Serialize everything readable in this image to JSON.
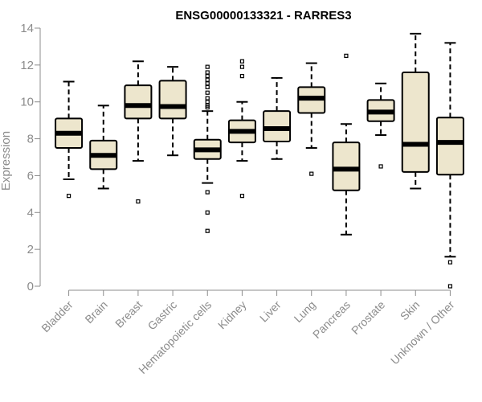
{
  "chart_data": {
    "type": "box",
    "title": "ENSG00000133321 - RARRES3",
    "ylabel": "Expression",
    "xlabel": "",
    "ylim": [
      0,
      14
    ],
    "yticks": [
      0,
      2,
      4,
      6,
      8,
      10,
      12,
      14
    ],
    "grid": false,
    "colors": {
      "box_fill": "#ede6cd",
      "box_stroke": "#000000",
      "axis": "#8c8c8c"
    },
    "categories": [
      "Bladder",
      "Brain",
      "Breast",
      "Gastric",
      "Hematopoietic cells",
      "Kidney",
      "Liver",
      "Lung",
      "Pancreas",
      "Prostate",
      "Skin",
      "Unknown / Other"
    ],
    "boxes": [
      {
        "min": 5.8,
        "q1": 7.5,
        "median": 8.3,
        "q3": 9.1,
        "max": 11.1,
        "outliers": [
          4.9
        ]
      },
      {
        "min": 5.3,
        "q1": 6.35,
        "median": 7.1,
        "q3": 7.9,
        "max": 9.8,
        "outliers": []
      },
      {
        "min": 6.8,
        "q1": 9.1,
        "median": 9.8,
        "q3": 10.9,
        "max": 12.2,
        "outliers": [
          4.6
        ]
      },
      {
        "min": 7.1,
        "q1": 9.1,
        "median": 9.75,
        "q3": 11.15,
        "max": 11.9,
        "outliers": []
      },
      {
        "min": 5.6,
        "q1": 6.9,
        "median": 7.4,
        "q3": 7.95,
        "max": 9.5,
        "outliers": [
          11.9,
          11.6,
          11.4,
          11.2,
          11.0,
          10.8,
          10.5,
          10.2,
          10.0,
          9.8,
          9.7,
          5.1,
          4.0,
          3.0
        ]
      },
      {
        "min": 6.8,
        "q1": 7.8,
        "median": 8.4,
        "q3": 9.0,
        "max": 10.0,
        "outliers": [
          12.2,
          11.9,
          11.4,
          4.9
        ]
      },
      {
        "min": 6.9,
        "q1": 7.85,
        "median": 8.55,
        "q3": 9.5,
        "max": 11.3,
        "outliers": []
      },
      {
        "min": 7.5,
        "q1": 9.4,
        "median": 10.2,
        "q3": 10.8,
        "max": 12.1,
        "outliers": [
          6.1
        ]
      },
      {
        "min": 2.8,
        "q1": 5.2,
        "median": 6.35,
        "q3": 7.8,
        "max": 8.8,
        "outliers": [
          12.5
        ]
      },
      {
        "min": 8.2,
        "q1": 8.95,
        "median": 9.45,
        "q3": 10.1,
        "max": 11.0,
        "outliers": [
          6.5
        ]
      },
      {
        "min": 5.3,
        "q1": 6.2,
        "median": 7.7,
        "q3": 11.6,
        "max": 13.7,
        "outliers": []
      },
      {
        "min": 1.6,
        "q1": 6.05,
        "median": 7.8,
        "q3": 9.15,
        "max": 13.2,
        "outliers": [
          1.3,
          0.0
        ]
      }
    ]
  }
}
